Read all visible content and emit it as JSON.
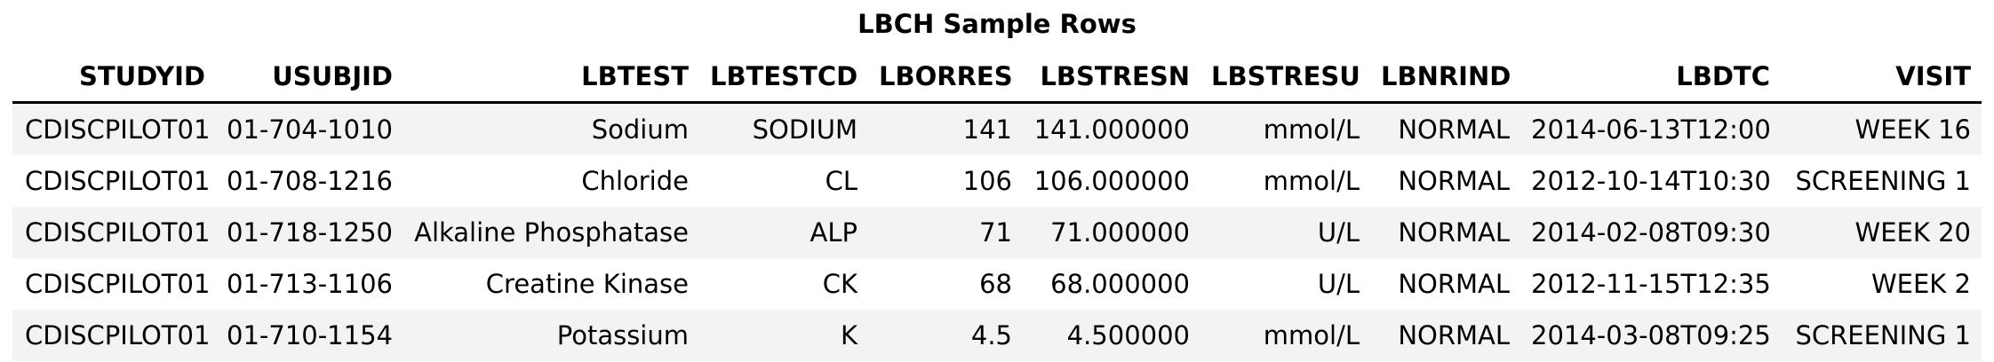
{
  "chart_data": {
    "type": "table",
    "title": "LBCH Sample Rows",
    "columns": [
      "STUDYID",
      "USUBJID",
      "LBTEST",
      "LBTESTCD",
      "LBORRES",
      "LBSTRESN",
      "LBSTRESU",
      "LBNRIND",
      "LBDTC",
      "VISIT"
    ],
    "rows": [
      [
        "CDISCPILOT01",
        "01-704-1010",
        "Sodium",
        "SODIUM",
        "141",
        "141.000000",
        "mmol/L",
        "NORMAL",
        "2014-06-13T12:00",
        "WEEK 16"
      ],
      [
        "CDISCPILOT01",
        "01-708-1216",
        "Chloride",
        "CL",
        "106",
        "106.000000",
        "mmol/L",
        "NORMAL",
        "2012-10-14T10:30",
        "SCREENING 1"
      ],
      [
        "CDISCPILOT01",
        "01-718-1250",
        "Alkaline Phosphatase",
        "ALP",
        "71",
        "71.000000",
        "U/L",
        "NORMAL",
        "2014-02-08T09:30",
        "WEEK 20"
      ],
      [
        "CDISCPILOT01",
        "01-713-1106",
        "Creatine Kinase",
        "CK",
        "68",
        "68.000000",
        "U/L",
        "NORMAL",
        "2012-11-15T12:35",
        "WEEK 2"
      ],
      [
        "CDISCPILOT01",
        "01-710-1154",
        "Potassium",
        "K",
        "4.5",
        "4.500000",
        "mmol/L",
        "NORMAL",
        "2014-03-08T09:25",
        "SCREENING 1"
      ]
    ],
    "header_rule": true,
    "row_banding": true,
    "band_color": "#f3f3f3"
  }
}
